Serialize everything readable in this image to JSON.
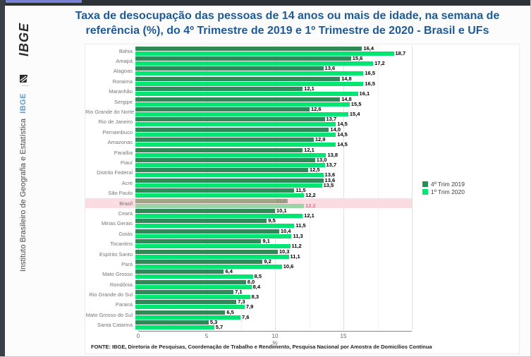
{
  "sidebar": {
    "logo_text": "IBGE",
    "divider": "|",
    "brand_abbrev": "IBGE",
    "brand_full": "Instituto Brasileiro de Geografia e Estatística"
  },
  "header": {
    "title": "Taxa de desocupação das pessoas de 14 anos ou mais de idade, na semana de referência (%), do 4º Trimestre de 2019 e 1º Trimestre de 2020 - Brasil e UFs"
  },
  "footer": {
    "source": "FONTE: IBGE, Diretoria de Pesquisas, Coordenação de Trabalho e Rendimento, Pesquisa Nacional por Amostra de Domicílios Contínua"
  },
  "colors": {
    "title_blue": "#1e5a96",
    "series_2019_green": "#2e8b57",
    "series_2020_green": "#00e673",
    "highlight_band_pink": "#fbdce2",
    "sidebar_brand_blue": "#5b9bd5"
  },
  "chart_data": {
    "type": "bar",
    "orientation": "horizontal",
    "xlabel": "%",
    "x_ticks": [
      0,
      5,
      10,
      15
    ],
    "xlim": [
      0,
      20
    ],
    "gridlines": {
      "minor_every": 2.5,
      "major_every": 5
    },
    "legend_position": "right",
    "categories": [
      "Bahia",
      "Amapá",
      "Alagoas",
      "Roraima",
      "Maranhão",
      "Sergipe",
      "Rio Grande do Norte",
      "Rio de Janeiro",
      "Pernambuco",
      "Amazonas",
      "Paraíba",
      "Piauí",
      "Distrito Federal",
      "Acre",
      "São Paulo",
      "Brasil",
      "Ceará",
      "Minas Gerais",
      "Goiás",
      "Tocantins",
      "Espírito Santo",
      "Pará",
      "Mato Grosso",
      "Rondônia",
      "Rio Grande do Sul",
      "Paraná",
      "Mato Grosso do Sul",
      "Santa Catarina"
    ],
    "series": [
      {
        "name": "4º Trim 2019",
        "color": "#2e8b57",
        "values": [
          16.4,
          15.6,
          13.6,
          14.8,
          12.1,
          14.8,
          12.6,
          13.7,
          14.0,
          12.9,
          12.1,
          13.0,
          12.5,
          13.6,
          11.5,
          11.0,
          10.1,
          9.5,
          10.4,
          9.1,
          10.3,
          9.2,
          6.4,
          8.0,
          7.1,
          7.3,
          6.5,
          5.3
        ]
      },
      {
        "name": "1º Trim 2020",
        "color": "#00e673",
        "values": [
          18.7,
          17.2,
          16.5,
          16.5,
          16.1,
          15.5,
          15.4,
          14.5,
          14.5,
          14.5,
          13.8,
          13.7,
          13.6,
          13.5,
          12.2,
          12.2,
          12.1,
          11.5,
          11.3,
          11.2,
          11.1,
          10.6,
          8.5,
          8.4,
          8.3,
          7.9,
          7.6,
          5.7
        ]
      }
    ],
    "highlight": {
      "category": "Brasil",
      "band_color": "#fbdce2",
      "bar_colors": [
        "#9fa585",
        "#98d4a6"
      ],
      "label_colors": [
        "#8f8f73",
        "#e2798c"
      ]
    }
  }
}
